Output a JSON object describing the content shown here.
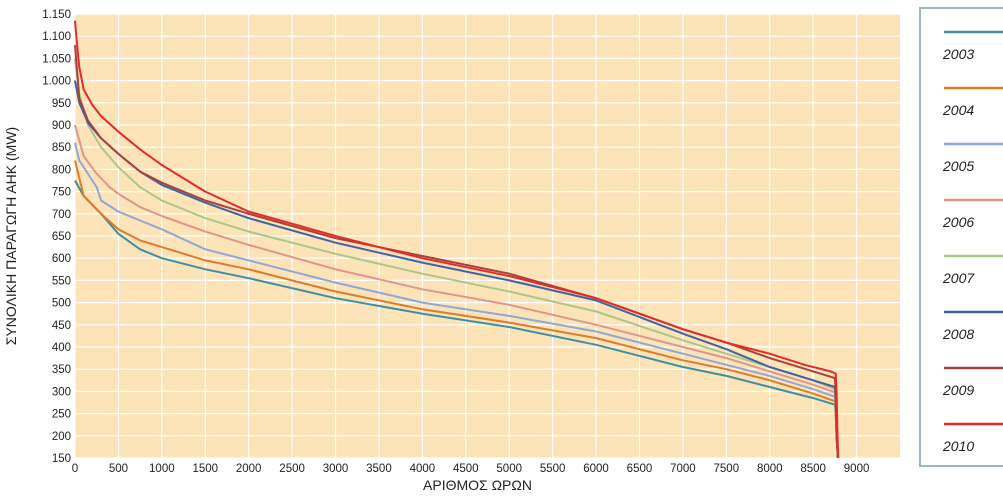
{
  "chart_data": {
    "type": "line",
    "title": "",
    "xlabel": "ΑΡΙΘΜΟΣ ΩΡΩΝ",
    "ylabel": "ΣΥΝΟΛΙΚΗ ΠΑΡΑΓΩΓΗ ΑΗΚ (MW)",
    "xlim": [
      0,
      9500
    ],
    "ylim": [
      150,
      1150
    ],
    "xticks": [
      0,
      500,
      1000,
      1500,
      2000,
      2500,
      3000,
      3500,
      4000,
      4500,
      5000,
      5500,
      6000,
      6500,
      7000,
      7500,
      8000,
      8500,
      9000
    ],
    "yticks": [
      150,
      200,
      250,
      300,
      350,
      400,
      450,
      500,
      550,
      600,
      650,
      700,
      750,
      800,
      850,
      900,
      950,
      1000,
      1050,
      1100,
      1150
    ],
    "ytick_labels": [
      "150",
      "200",
      "250",
      "300",
      "350",
      "400",
      "450",
      "500",
      "550",
      "600",
      "650",
      "700",
      "750",
      "800",
      "850",
      "900",
      "950",
      "1.000",
      "1.050",
      "1.100",
      "1.150"
    ],
    "grid": true,
    "background": "#fde3b8",
    "legend_position": "right",
    "series": [
      {
        "name": "2003",
        "color": "#3d8fa3",
        "x": [
          0,
          100,
          300,
          500,
          750,
          1000,
          1500,
          2000,
          3000,
          4000,
          5000,
          6000,
          7000,
          7500,
          8000,
          8500,
          8750,
          8760,
          8770,
          8785
        ],
        "y": [
          775,
          740,
          700,
          655,
          620,
          600,
          575,
          555,
          510,
          475,
          445,
          405,
          355,
          335,
          310,
          285,
          270,
          250,
          200,
          150
        ]
      },
      {
        "name": "2004",
        "color": "#e07b2a",
        "x": [
          0,
          100,
          300,
          500,
          750,
          1000,
          1500,
          2000,
          3000,
          4000,
          5000,
          6000,
          7000,
          7500,
          8000,
          8500,
          8750,
          8760,
          8770,
          8785
        ],
        "y": [
          820,
          740,
          700,
          665,
          640,
          625,
          595,
          575,
          525,
          485,
          455,
          420,
          370,
          350,
          325,
          295,
          278,
          255,
          200,
          150
        ]
      },
      {
        "name": "2005",
        "color": "#8fa8d6",
        "x": [
          0,
          50,
          150,
          250,
          300,
          500,
          750,
          1000,
          1500,
          2000,
          3000,
          4000,
          5000,
          6000,
          7000,
          7500,
          8000,
          8500,
          8750,
          8760,
          8770,
          8785
        ],
        "y": [
          860,
          820,
          790,
          760,
          730,
          705,
          685,
          665,
          620,
          595,
          545,
          500,
          470,
          435,
          385,
          360,
          335,
          305,
          288,
          260,
          200,
          150
        ]
      },
      {
        "name": "2006",
        "color": "#e0958a",
        "x": [
          0,
          100,
          250,
          400,
          500,
          750,
          1000,
          1500,
          2000,
          3000,
          4000,
          5000,
          6000,
          7000,
          7500,
          8000,
          8500,
          8750,
          8760,
          8770,
          8785
        ],
        "y": [
          900,
          830,
          790,
          760,
          745,
          715,
          695,
          660,
          630,
          575,
          530,
          495,
          450,
          400,
          375,
          345,
          315,
          298,
          265,
          200,
          150
        ]
      },
      {
        "name": "2007",
        "color": "#a8c888",
        "x": [
          0,
          50,
          150,
          300,
          500,
          750,
          1000,
          1500,
          2000,
          3000,
          4000,
          5000,
          6000,
          7000,
          7500,
          8000,
          8500,
          8750,
          8760,
          8770,
          8785
        ],
        "y": [
          1050,
          970,
          900,
          850,
          805,
          760,
          730,
          690,
          660,
          610,
          565,
          525,
          480,
          415,
          385,
          355,
          325,
          305,
          270,
          200,
          150
        ]
      },
      {
        "name": "2008",
        "color": "#3e64a3",
        "x": [
          0,
          50,
          150,
          300,
          500,
          750,
          1000,
          1500,
          2000,
          3000,
          4000,
          5000,
          6000,
          7000,
          7500,
          8000,
          8500,
          8750,
          8760,
          8770,
          8785
        ],
        "y": [
          1000,
          950,
          905,
          870,
          835,
          795,
          765,
          725,
          690,
          635,
          590,
          550,
          505,
          430,
          395,
          355,
          325,
          310,
          280,
          200,
          150
        ]
      },
      {
        "name": "2009",
        "color": "#a8413b",
        "x": [
          0,
          50,
          150,
          300,
          500,
          750,
          1000,
          1500,
          2000,
          3000,
          4000,
          5000,
          6000,
          7000,
          7500,
          8000,
          8500,
          8750,
          8760,
          8770,
          8785
        ],
        "y": [
          1080,
          960,
          910,
          870,
          835,
          795,
          770,
          730,
          700,
          645,
          605,
          565,
          510,
          440,
          410,
          375,
          345,
          330,
          300,
          200,
          150
        ]
      },
      {
        "name": "2010",
        "color": "#e8292a",
        "x": [
          0,
          20,
          50,
          100,
          200,
          300,
          500,
          750,
          1000,
          1500,
          2000,
          3000,
          4000,
          5000,
          6000,
          7000,
          7500,
          8000,
          8400,
          8700,
          8760,
          8770,
          8780,
          8790
        ],
        "y": [
          1135,
          1090,
          1030,
          980,
          945,
          920,
          885,
          845,
          810,
          750,
          705,
          650,
          600,
          560,
          510,
          440,
          410,
          385,
          360,
          345,
          340,
          300,
          200,
          150
        ]
      }
    ]
  }
}
